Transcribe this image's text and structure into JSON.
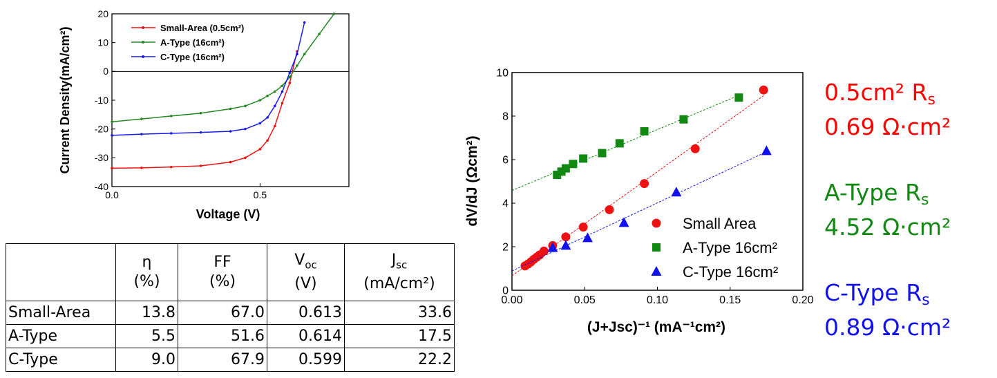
{
  "chart_data": [
    {
      "type": "line",
      "x_label": "Voltage (V)",
      "y_label": "Current Density(mA/cm²)",
      "x": [
        0,
        0.1,
        0.2,
        0.3,
        0.4,
        0.45,
        0.5,
        0.525,
        0.55,
        0.575,
        0.6,
        0.625,
        0.65,
        0.7,
        0.75
      ],
      "series": [
        {
          "name": "Small-Area (0.5cm²)",
          "color": "#ee1111",
          "values": [
            -33.6,
            -33.5,
            -33.2,
            -32.8,
            -31.5,
            -30,
            -27,
            -24,
            -19,
            -11,
            -4,
            7,
            null,
            null,
            null
          ]
        },
        {
          "name": "A-Type (16cm²)",
          "color": "#228822",
          "values": [
            -17.5,
            -16.5,
            -15.5,
            -14.5,
            -13,
            -12,
            -10,
            -8.5,
            -7,
            -5,
            -2,
            2,
            6,
            13,
            20
          ]
        },
        {
          "name": "C-Type (16cm²)",
          "color": "#1a1aee",
          "values": [
            -22.2,
            -21.8,
            -21.5,
            -21.2,
            -20.8,
            -20,
            -18,
            -16,
            -12,
            -7,
            -0.5,
            6,
            17,
            null,
            null
          ]
        }
      ],
      "xlim": [
        0,
        0.8
      ],
      "xticks": [
        {
          "value": 0,
          "label": "0.0"
        },
        {
          "value": 0.5,
          "label": "0.5"
        }
      ],
      "ylim": [
        -40,
        20
      ],
      "yticks": [
        -40,
        -30,
        -20,
        -10,
        0,
        10,
        20
      ],
      "zero_line": true,
      "legend": "upper left"
    },
    {
      "type": "scatter",
      "x_label": "(J+Jsc)⁻¹ (mA⁻¹cm²)",
      "y_label": "dV/dJ (Ωcm²)",
      "series": [
        {
          "name": "Small Area",
          "color": "#ee1111",
          "marker": "circle",
          "x": [
            0.009,
            0.011,
            0.013,
            0.015,
            0.017,
            0.019,
            0.022,
            0.028,
            0.037,
            0.049,
            0.067,
            0.091,
            0.126,
            0.173
          ],
          "values": [
            1.12,
            1.2,
            1.3,
            1.42,
            1.52,
            1.62,
            1.8,
            2.05,
            2.45,
            2.9,
            3.7,
            4.9,
            6.5,
            9.2
          ]
        },
        {
          "name": "A-Type 16cm²",
          "color": "#118811",
          "marker": "square",
          "x": [
            0.031,
            0.034,
            0.037,
            0.042,
            0.049,
            0.062,
            0.074,
            0.091,
            0.118,
            0.156
          ],
          "values": [
            5.3,
            5.45,
            5.6,
            5.8,
            6.05,
            6.3,
            6.75,
            7.3,
            7.85,
            8.85
          ]
        },
        {
          "name": "C-Type 16cm²",
          "color": "#1111ee",
          "marker": "triangle",
          "x": [
            0.028,
            0.037,
            0.052,
            0.077,
            0.113,
            0.175
          ],
          "values": [
            1.95,
            2.05,
            2.4,
            3.1,
            4.5,
            6.4
          ]
        }
      ],
      "xlim": [
        0,
        0.2
      ],
      "xticks": [
        {
          "value": 0,
          "label": "0.00"
        },
        {
          "value": 0.05,
          "label": "0.05"
        },
        {
          "value": 0.1,
          "label": "0.10"
        },
        {
          "value": 0.15,
          "label": "0.15"
        },
        {
          "value": 0.2,
          "label": "0.20"
        }
      ],
      "ylim": [
        0,
        10
      ],
      "yticks": [
        0,
        2,
        4,
        6,
        8,
        10
      ],
      "fit_lines": true,
      "legend": "lower right"
    }
  ],
  "table": {
    "header": [
      {
        "symbol": "η",
        "unit": "(%)"
      },
      {
        "symbol": "FF",
        "unit": "(%)"
      },
      {
        "symbol": "V",
        "sub": "oc",
        "unit": "(V)"
      },
      {
        "symbol": "J",
        "sub": "sc",
        "unit": "(mA/cm²)"
      }
    ],
    "rows": [
      [
        "Small-Area",
        "13.8",
        "67.0",
        "0.613",
        "33.6"
      ],
      [
        "A-Type",
        "5.5",
        "51.6",
        "0.614",
        "17.5"
      ],
      [
        "C-Type",
        "9.0",
        "67.9",
        "0.599",
        "22.2"
      ]
    ]
  },
  "annotations": [
    {
      "label": "0.5cm²",
      "symbol": "R",
      "sub": "s",
      "value": "0.69 Ω·cm²",
      "color": "#ff0000"
    },
    {
      "label": "A-Type",
      "symbol": "R",
      "sub": "s",
      "value": "4.52 Ω·cm²",
      "color": "#118811"
    },
    {
      "label": "C-Type",
      "symbol": "R",
      "sub": "s",
      "value": "0.89 Ω·cm²",
      "color": "#1111ee"
    }
  ]
}
